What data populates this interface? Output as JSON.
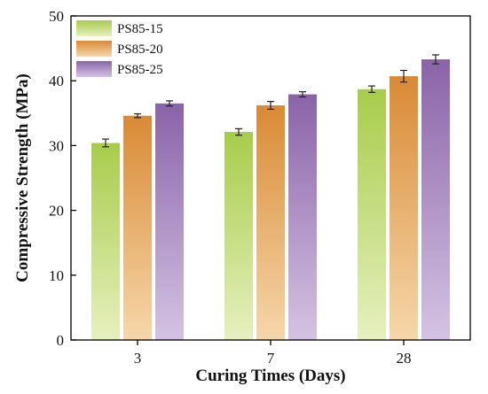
{
  "chart_data": {
    "type": "bar",
    "title": "",
    "xlabel": "Curing Times (Days)",
    "ylabel": "Compressive Strength (MPa)",
    "ylim": [
      0,
      50
    ],
    "yticks": [
      0,
      10,
      20,
      30,
      40,
      50
    ],
    "categories": [
      "3",
      "7",
      "28"
    ],
    "legend_position": "top-left",
    "grid": false,
    "error_bars": true,
    "series": [
      {
        "name": "PS85-15",
        "values": [
          30.4,
          32.1,
          38.7
        ],
        "errors": [
          0.6,
          0.5,
          0.5
        ],
        "color_top": "#a8cc4a",
        "color_bottom": "#e6f0bf"
      },
      {
        "name": "PS85-20",
        "values": [
          34.6,
          36.2,
          40.7
        ],
        "errors": [
          0.3,
          0.6,
          0.9
        ],
        "color_top": "#d98a35",
        "color_bottom": "#f6d7aa"
      },
      {
        "name": "PS85-25",
        "values": [
          36.5,
          37.9,
          43.3
        ],
        "errors": [
          0.4,
          0.4,
          0.7
        ],
        "color_top": "#8a63a8",
        "color_bottom": "#d4c3e3"
      }
    ]
  }
}
